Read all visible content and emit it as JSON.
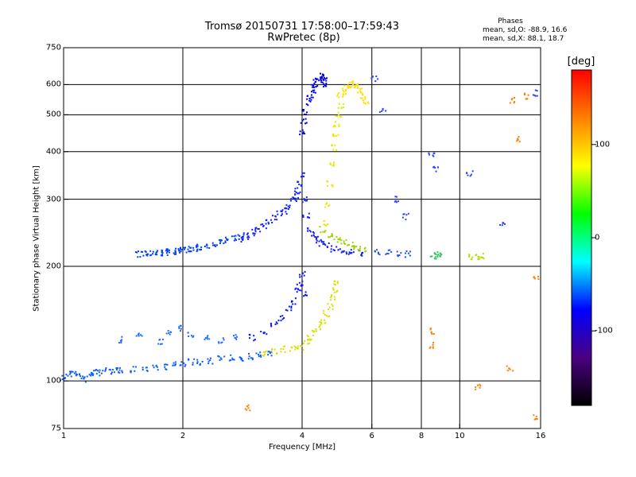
{
  "header": {
    "title_line1": "Tromsø 20150731 17:58:00–17:59:43",
    "title_line2": "RwPretec (8p)",
    "phases_title": "Phases",
    "phases_o": "mean, sd,O: -88.9, 16.6",
    "phases_x": "mean, sd,X:  88.1, 18.7"
  },
  "colorbar": {
    "label": "[deg]",
    "range": [
      -180,
      180
    ],
    "ticks": [
      {
        "value": 100,
        "label": "100"
      },
      {
        "value": 0,
        "label": "0"
      },
      {
        "value": -100,
        "label": "-100"
      }
    ],
    "stops": [
      "#000000",
      "#4a0080",
      "#0000ff",
      "#00ffff",
      "#00ff00",
      "#ffff00",
      "#ff7f00",
      "#ff0000"
    ]
  },
  "chart_data": {
    "type": "scatter",
    "title": "Tromsø 20150731 17:58:00–17:59:43",
    "subtitle": "RwPretec (8p)",
    "xlabel": "Frequency [MHz]",
    "ylabel": "Stationary phase Virtual Height [km]",
    "x_scale": "log",
    "y_scale": "log",
    "xlim": [
      1,
      16
    ],
    "ylim": [
      75,
      750
    ],
    "x_ticks": [
      {
        "value": 1,
        "label": "1"
      },
      {
        "value": 2,
        "label": "2"
      },
      {
        "value": 4,
        "label": "4"
      },
      {
        "value": 6,
        "label": "6"
      },
      {
        "value": 8,
        "label": "8"
      },
      {
        "value": 10,
        "label": "10"
      },
      {
        "value": 16,
        "label": "16"
      }
    ],
    "y_ticks": [
      {
        "value": 75,
        "label": "75"
      },
      {
        "value": 100,
        "label": "100"
      },
      {
        "value": 200,
        "label": "200"
      },
      {
        "value": 300,
        "label": "300"
      },
      {
        "value": 400,
        "label": "400"
      },
      {
        "value": 500,
        "label": "500"
      },
      {
        "value": 600,
        "label": "600"
      },
      {
        "value": 750,
        "label": "750"
      }
    ],
    "x_grid": [
      2,
      4,
      6,
      8,
      10
    ],
    "y_grid": [
      100,
      200,
      300,
      400,
      500,
      600
    ],
    "grid": true,
    "color_variable": "phase [deg]",
    "series": [
      {
        "color": "#0b5fff",
        "x": [
          1.0,
          1.03,
          1.06,
          1.1,
          1.13,
          1.17,
          1.2,
          1.25,
          1.3,
          1.35,
          1.4,
          1.5,
          1.6,
          1.7,
          1.8,
          1.9,
          2.0,
          2.1,
          2.2,
          2.35,
          2.5,
          2.65,
          2.8,
          2.95,
          3.1,
          3.3
        ],
        "y": [
          102,
          104,
          105,
          103,
          101,
          104,
          106,
          105,
          106,
          107,
          107,
          107,
          108,
          109,
          109,
          110,
          111,
          112,
          112,
          113,
          114,
          115,
          115,
          116,
          117,
          118
        ]
      },
      {
        "color": "#0040ff",
        "x": [
          1.55,
          1.6,
          1.65,
          1.7,
          1.75,
          1.8,
          1.85,
          1.9,
          1.95,
          2.0,
          2.05,
          2.1,
          2.15,
          2.2,
          2.3,
          2.4,
          2.5,
          2.6,
          2.7,
          2.8
        ],
        "y": [
          215,
          215,
          216,
          216,
          217,
          217,
          218,
          219,
          219,
          220,
          221,
          222,
          223,
          224,
          226,
          228,
          231,
          234,
          237,
          240
        ]
      },
      {
        "color": "#1020ff",
        "x": [
          2.8,
          2.9,
          3.0,
          3.1,
          3.2,
          3.3,
          3.4,
          3.5,
          3.6,
          3.7,
          3.8,
          3.85,
          3.9,
          3.95,
          4.0,
          4.05,
          4.1,
          4.2,
          4.3,
          4.4,
          4.5,
          4.6,
          4.8,
          5.0,
          5.2,
          5.4,
          5.6
        ],
        "y": [
          236,
          240,
          245,
          250,
          256,
          262,
          268,
          274,
          280,
          288,
          297,
          305,
          315,
          330,
          350,
          300,
          270,
          250,
          240,
          235,
          230,
          226,
          222,
          220,
          218,
          217,
          216
        ]
      },
      {
        "color": "#0a14f0",
        "x": [
          3.0,
          3.2,
          3.4,
          3.55,
          3.7,
          3.8,
          3.9,
          3.95,
          4.0,
          4.05
        ],
        "y": [
          130,
          134,
          140,
          146,
          154,
          162,
          172,
          180,
          190,
          170
        ]
      },
      {
        "color": "#0000e6",
        "x": [
          4.0,
          4.05,
          4.1,
          4.15,
          4.2,
          4.25,
          4.3,
          4.35,
          4.4,
          4.45,
          4.5,
          4.55,
          4.6
        ],
        "y": [
          450,
          480,
          510,
          540,
          560,
          580,
          600,
          610,
          620,
          630,
          625,
          615,
          600
        ]
      },
      {
        "color": "#1e6bff",
        "x": [
          1.4,
          1.55,
          1.75,
          1.85,
          1.95,
          2.1,
          2.3,
          2.5,
          2.7
        ],
        "y": [
          128,
          131,
          127,
          135,
          138,
          132,
          129,
          128,
          130
        ]
      },
      {
        "color": "#d8e000",
        "x": [
          3.2,
          3.4,
          3.6,
          3.8,
          3.95,
          4.1,
          4.2,
          4.3,
          4.4,
          4.5,
          4.6,
          4.7,
          4.8,
          4.85,
          4.9
        ],
        "y": [
          118,
          120,
          121,
          122,
          123,
          126,
          130,
          134,
          139,
          144,
          150,
          157,
          165,
          172,
          180
        ]
      },
      {
        "color": "#e8e800",
        "x": [
          4.6,
          4.65,
          4.7,
          4.75,
          4.8,
          4.85,
          4.9,
          4.95,
          5.0
        ],
        "y": [
          260,
          290,
          330,
          370,
          410,
          440,
          470,
          500,
          530
        ]
      },
      {
        "color": "#ffe000",
        "x": [
          5.0,
          5.1,
          5.2,
          5.3,
          5.4,
          5.5,
          5.6,
          5.7,
          5.8
        ],
        "y": [
          560,
          575,
          590,
          600,
          605,
          595,
          580,
          560,
          540
        ]
      },
      {
        "color": "#9fd000",
        "x": [
          4.5,
          4.7,
          4.9,
          5.1,
          5.3,
          5.5,
          5.7
        ],
        "y": [
          250,
          240,
          235,
          230,
          228,
          225,
          222
        ]
      },
      {
        "color": "#2050ff",
        "x": [
          6.2,
          6.6,
          7.0,
          7.4
        ],
        "y": [
          218,
          217,
          216,
          215
        ]
      },
      {
        "color": "#30c060",
        "x": [
          8.6,
          8.8,
          9.0
        ],
        "y": [
          213,
          214,
          215
        ]
      },
      {
        "color": "#b0e000",
        "x": [
          10.6,
          11.0,
          11.4
        ],
        "y": [
          211,
          212,
          212
        ]
      },
      {
        "color": "#ff7f00",
        "x": [
          2.9,
          8.5,
          8.55,
          11.1,
          13.4,
          13.6,
          14.1,
          14.7,
          15.4,
          15.6
        ],
        "y": [
          85,
          124,
          135,
          96,
          108,
          545,
          430,
          560,
          80,
          185
        ]
      },
      {
        "color": "#3040ff",
        "x": [
          6.1,
          6.4,
          6.9,
          7.3,
          8.5,
          8.7,
          10.6,
          12.8,
          15.5
        ],
        "y": [
          620,
          510,
          300,
          270,
          390,
          360,
          350,
          260,
          570
        ]
      }
    ]
  }
}
